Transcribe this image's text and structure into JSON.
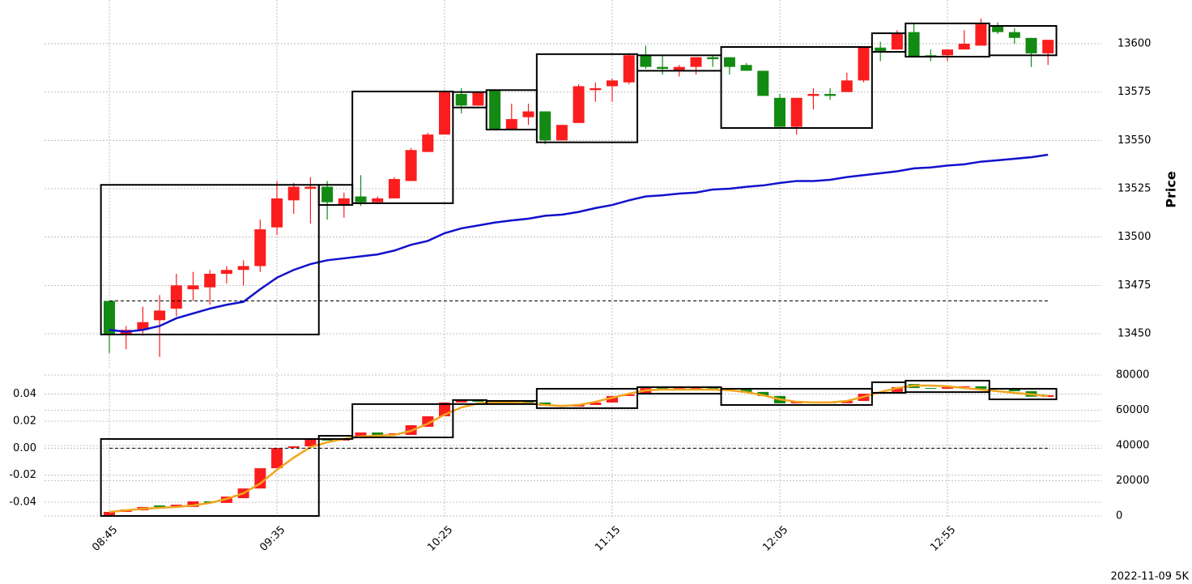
{
  "chart_data": [
    {
      "type": "candlestick",
      "ylabel": "Price",
      "ylim": [
        13432,
        13622.6
      ],
      "yticks": [
        13450,
        13475,
        13500,
        13525,
        13550,
        13575,
        13600
      ],
      "grid": true,
      "candles": {
        "up_color": "#fb1d1d",
        "down_color": "#138a13",
        "open": [
          13467,
          13450,
          13452,
          13457,
          13463,
          13473,
          13474,
          13481,
          13483,
          13485,
          13505,
          13519,
          13525,
          13526,
          13517,
          13521,
          13518,
          13520,
          13529,
          13544,
          13553,
          13574,
          13568,
          13576,
          13556,
          13562,
          13565,
          13550,
          13559,
          13576,
          13578,
          13580,
          13594,
          13588,
          13586,
          13588,
          13593,
          13593,
          13589,
          13586,
          13572,
          13557,
          13573,
          13574,
          13575,
          13581,
          13598,
          13597,
          13606,
          13594,
          13594,
          13597,
          13599,
          13609,
          13606,
          13603,
          13595
        ],
        "high": [
          13467,
          13454,
          13464,
          13470,
          13481,
          13482,
          13483,
          13485,
          13488,
          13509,
          13529,
          13528,
          13531,
          13529,
          13523,
          13532,
          13521,
          13531,
          13546,
          13554,
          13576,
          13577,
          13575,
          13576,
          13569,
          13569,
          13565,
          13558,
          13579,
          13580,
          13582,
          13595,
          13599,
          13594,
          13589,
          13593,
          13594,
          13593,
          13590,
          13586,
          13574,
          13572,
          13577,
          13577,
          13585,
          13598,
          13601,
          13607,
          13611,
          13597,
          13597,
          13607,
          13613,
          13611,
          13608,
          13603,
          13602
        ],
        "low": [
          13440,
          13442,
          13449,
          13438,
          13459,
          13467,
          13465,
          13476,
          13475,
          13482,
          13501,
          13512,
          13507,
          13509,
          13510,
          13516,
          13517,
          13520,
          13529,
          13544,
          13553,
          13564,
          13568,
          13556,
          13556,
          13558,
          13548,
          13550,
          13559,
          13570,
          13570,
          13579,
          13587,
          13584,
          13583,
          13584,
          13588,
          13584,
          13586,
          13573,
          13557,
          13553,
          13566,
          13571,
          13575,
          13580,
          13591,
          13597,
          13593,
          13591,
          13591,
          13597,
          13599,
          13605,
          13600,
          13588,
          13589
        ],
        "close": [
          13450,
          13452,
          13456,
          13462,
          13475,
          13475,
          13481,
          13483,
          13485,
          13504,
          13520,
          13526,
          13526,
          13518,
          13520,
          13518,
          13520,
          13530,
          13545,
          13553,
          13575,
          13568,
          13575,
          13556,
          13561,
          13565,
          13550,
          13558,
          13578,
          13577,
          13581,
          13594,
          13588,
          13587,
          13588,
          13593,
          13592,
          13588,
          13586,
          13573,
          13557,
          13572,
          13574,
          13573,
          13581,
          13598,
          13596,
          13605,
          13593,
          13593,
          13597,
          13600,
          13610,
          13606,
          13603,
          13595,
          13602
        ]
      },
      "line": {
        "color": "#1111cc",
        "values": [
          13452,
          13451,
          13452,
          13454,
          13458,
          13460.5,
          13463,
          13465,
          13466.5,
          13473,
          13479,
          13483,
          13486,
          13488,
          13489,
          13490,
          13491,
          13493,
          13496,
          13498,
          13502,
          13504.5,
          13506,
          13507.5,
          13508.6,
          13509.5,
          13511,
          13511.6,
          13513,
          13515,
          13516.6,
          13519,
          13521,
          13521.6,
          13522.5,
          13523,
          13524.6,
          13525,
          13526,
          13526.7,
          13528,
          13529,
          13529,
          13529.6,
          13531,
          13532,
          13533,
          13534,
          13535.5,
          13536,
          13537,
          13537.6,
          13539,
          13539.7,
          13540.5,
          13541.3,
          13542.6
        ]
      },
      "hline": {
        "value": 13467,
        "color": "#000000"
      },
      "boxes": [
        {
          "from": 0,
          "to": 12,
          "low": 13449.6,
          "high": 13527
        },
        {
          "from": 13,
          "to": 14,
          "low": 13516.6,
          "high": 13527
        },
        {
          "from": 15,
          "to": 20,
          "low": 13517.5,
          "high": 13575.3
        },
        {
          "from": 21,
          "to": 22,
          "low": 13567,
          "high": 13575
        },
        {
          "from": 23,
          "to": 25,
          "low": 13555.6,
          "high": 13576
        },
        {
          "from": 26,
          "to": 31,
          "low": 13549,
          "high": 13594.6
        },
        {
          "from": 32,
          "to": 36,
          "low": 13586,
          "high": 13594
        },
        {
          "from": 37,
          "to": 45,
          "low": 13556.4,
          "high": 13598.3
        },
        {
          "from": 46,
          "to": 47,
          "low": 13595.8,
          "high": 13605.4
        },
        {
          "from": 48,
          "to": 52,
          "low": 13593.3,
          "high": 13610.5
        },
        {
          "from": 53,
          "to": 56,
          "low": 13594,
          "high": 13609.2
        }
      ]
    },
    {
      "type": "candlestick",
      "categories": [
        "08:45",
        null,
        null,
        null,
        null,
        null,
        null,
        null,
        null,
        null,
        "09:35",
        null,
        null,
        null,
        null,
        null,
        null,
        null,
        null,
        null,
        "10:25",
        null,
        null,
        null,
        null,
        null,
        null,
        null,
        null,
        null,
        "11:15",
        null,
        null,
        null,
        null,
        null,
        null,
        null,
        null,
        null,
        "12:05",
        null,
        null,
        null,
        null,
        null,
        null,
        null,
        null,
        null,
        "12:55",
        null,
        null,
        null,
        null,
        null,
        null
      ],
      "ylim": [
        -0.052,
        0.056
      ],
      "yticks": [
        -0.04,
        -0.02,
        {
          "value": 0,
          "label": "0.00"
        },
        0.02,
        0.04
      ],
      "y2lim": [
        -1380,
        81380
      ],
      "y2ticks": [
        0,
        20000,
        40000,
        60000,
        80000
      ],
      "grid": true,
      "candles": {
        "axis": "y2",
        "up_color": "#fb1d1d",
        "down_color": "#138a13",
        "open": [
          0,
          2300,
          3200,
          6000,
          5100,
          5100,
          8300,
          7400,
          10100,
          15600,
          27100,
          38600,
          39500,
          43700,
          42800,
          44100,
          47400,
          46000,
          46000,
          50600,
          56600,
          64400,
          65800,
          64800,
          64400,
          64800,
          64400,
          62500,
          62100,
          63000,
          64400,
          68100,
          69000,
          72600,
          72200,
          72200,
          72600,
          72200,
          71700,
          70400,
          68100,
          63900,
          64800,
          64400,
          64000,
          65300,
          69400,
          70400,
          74900,
          72600,
          72200,
          73100,
          73600,
          72200,
          71700,
          70800,
          67600
        ],
        "close": [
          2300,
          3700,
          5100,
          5100,
          6400,
          8300,
          7400,
          11000,
          15600,
          27100,
          38600,
          39500,
          43700,
          42800,
          44100,
          47400,
          46000,
          46900,
          51500,
          56600,
          64400,
          65800,
          64800,
          64400,
          64800,
          64400,
          62500,
          62100,
          63500,
          64400,
          68100,
          69000,
          72600,
          72200,
          72600,
          72600,
          72200,
          71700,
          70400,
          68100,
          63900,
          64800,
          64400,
          64000,
          65300,
          69400,
          70400,
          73100,
          72600,
          72200,
          73100,
          73600,
          72200,
          71700,
          70800,
          67700,
          68500
        ]
      },
      "line": {
        "axis": "y2",
        "color": "#f0a51e",
        "values": [
          2300,
          3200,
          4100,
          4600,
          5100,
          6000,
          7400,
          9700,
          12900,
          18400,
          26200,
          33100,
          39100,
          41800,
          43700,
          45100,
          45500,
          46000,
          48300,
          52400,
          57500,
          61600,
          63900,
          64400,
          64400,
          63900,
          63000,
          62500,
          63000,
          64800,
          67100,
          69400,
          71300,
          71700,
          71700,
          71700,
          71700,
          71300,
          70300,
          68500,
          66200,
          64800,
          64400,
          64400,
          65300,
          67600,
          70300,
          72600,
          74000,
          74000,
          73600,
          72600,
          71700,
          70800,
          69900,
          69000,
          68100
        ]
      },
      "hline": {
        "value": 0,
        "color": "#000000"
      },
      "boxes": [
        {
          "axis": "y2",
          "from": 0,
          "to": 12,
          "low": 0,
          "high": 43700
        },
        {
          "axis": "y2",
          "from": 13,
          "to": 14,
          "low": 43700,
          "high": 45500
        },
        {
          "axis": "y2",
          "from": 15,
          "to": 20,
          "low": 44600,
          "high": 63500
        },
        {
          "axis": "y2",
          "from": 21,
          "to": 22,
          "low": 63500,
          "high": 65800
        },
        {
          "axis": "y2",
          "from": 23,
          "to": 25,
          "low": 63500,
          "high": 65300
        },
        {
          "axis": "y2",
          "from": 26,
          "to": 31,
          "low": 61200,
          "high": 72200
        },
        {
          "axis": "y2",
          "from": 32,
          "to": 36,
          "low": 69400,
          "high": 73100
        },
        {
          "axis": "y2",
          "from": 37,
          "to": 45,
          "low": 63000,
          "high": 72200
        },
        {
          "axis": "y2",
          "from": 46,
          "to": 47,
          "low": 69900,
          "high": 75900
        },
        {
          "axis": "y2",
          "from": 48,
          "to": 52,
          "low": 70300,
          "high": 76800
        },
        {
          "axis": "y2",
          "from": 53,
          "to": 56,
          "low": 66200,
          "high": 72200
        }
      ]
    }
  ],
  "footnote": "2022-11-09 5K"
}
